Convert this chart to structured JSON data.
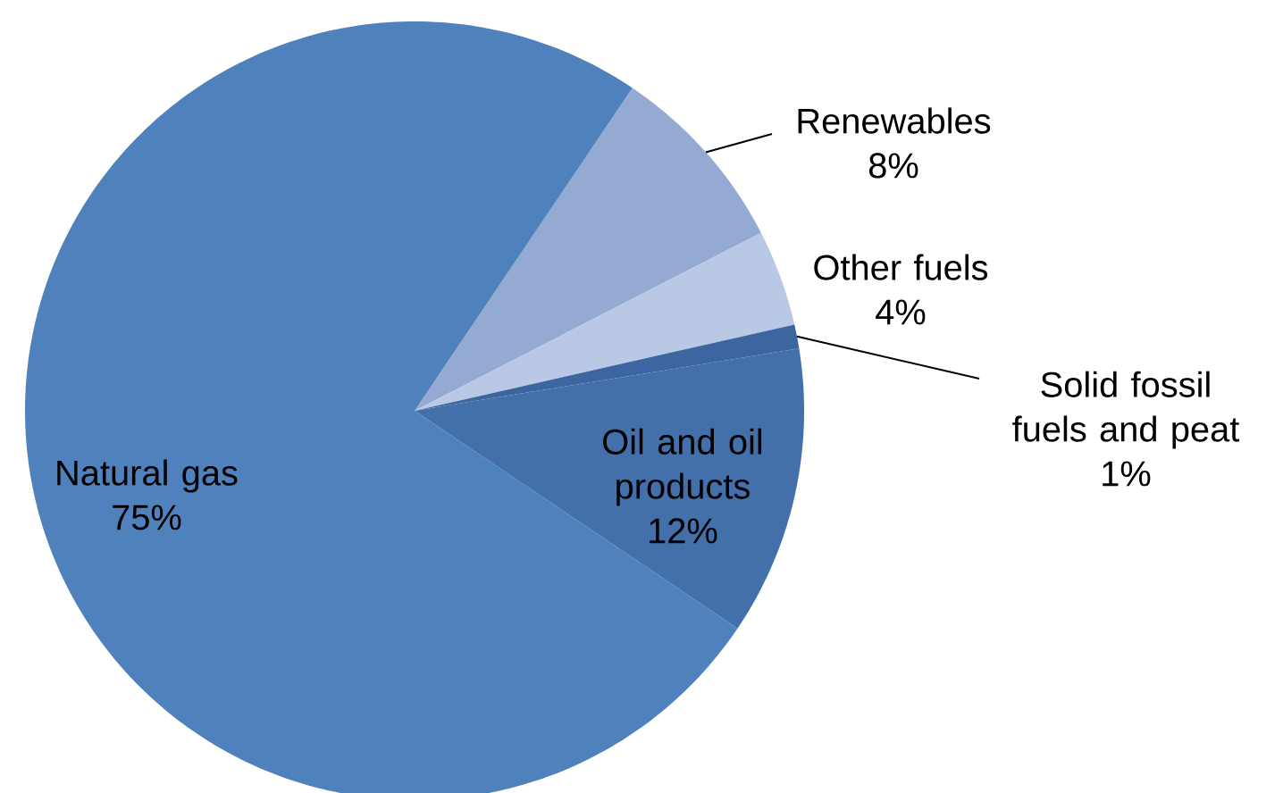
{
  "chart_data": {
    "type": "pie",
    "categories": [
      "Renewables",
      "Other fuels",
      "Solid fossil fuels and peat",
      "Oil and oil products",
      "Natural gas"
    ],
    "values": [
      8,
      4,
      1,
      12,
      75
    ],
    "colors": [
      "#94aad3",
      "#b9c8e4",
      "#3d66a0",
      "#4370aa",
      "#4f81bd"
    ],
    "value_labels": [
      "8%",
      "4%",
      "1%",
      "12%",
      "75%"
    ]
  }
}
